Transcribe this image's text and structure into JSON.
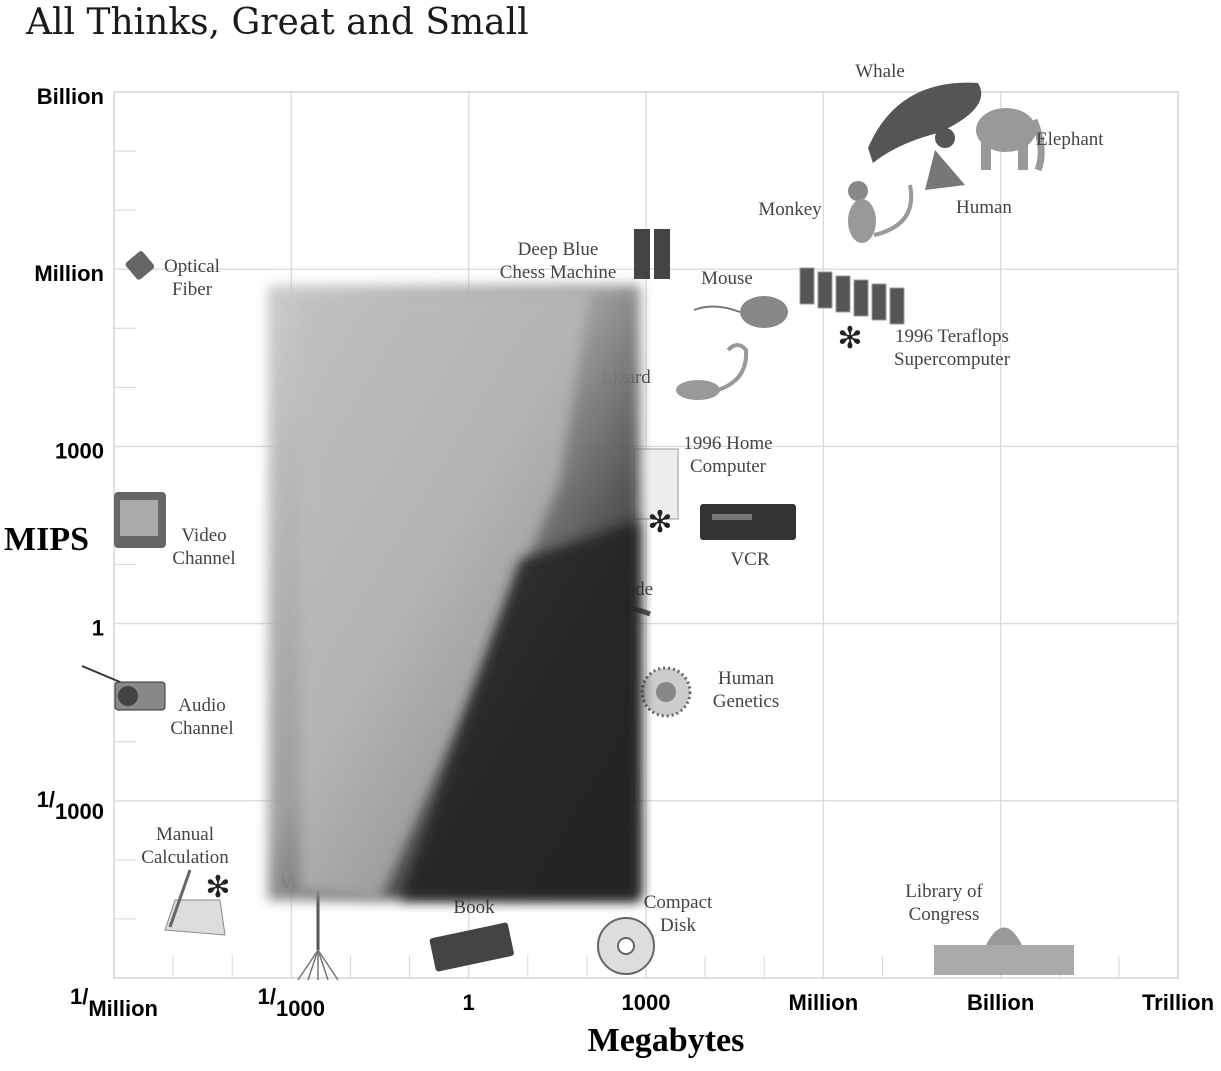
{
  "chart_data": {
    "type": "scatter",
    "title": "All Thinks, Great and Small",
    "xlabel": "Megabytes",
    "ylabel": "MIPS",
    "x_scale": "log",
    "y_scale": "log",
    "xlim": [
      1e-06,
      1000000000000.0
    ],
    "ylim": [
      1e-06,
      1000000000.0
    ],
    "grid": true,
    "x_ticks": [
      {
        "value": 1e-06,
        "pre": "1/",
        "sub": "Million"
      },
      {
        "value": 0.001,
        "pre": "1/",
        "sub": "1000"
      },
      {
        "value": 1,
        "pre": "1",
        "sub": ""
      },
      {
        "value": 1000.0,
        "pre": "1000",
        "sub": ""
      },
      {
        "value": 1000000.0,
        "pre": "Million",
        "sub": ""
      },
      {
        "value": 1000000000.0,
        "pre": "Billion",
        "sub": ""
      },
      {
        "value": 1000000000000.0,
        "pre": "Trillion",
        "sub": ""
      }
    ],
    "y_ticks": [
      {
        "value": 1000000000.0,
        "pre": "Billion",
        "sub": ""
      },
      {
        "value": 1000000.0,
        "pre": "Million",
        "sub": ""
      },
      {
        "value": 1000.0,
        "pre": "1000",
        "sub": ""
      },
      {
        "value": 1,
        "pre": "1",
        "sub": ""
      },
      {
        "value": 0.001,
        "pre": "1/",
        "sub": "1000"
      }
    ],
    "points": [
      {
        "label": [
          "Whale"
        ],
        "x": 1000000000.0,
        "y": 100000000.0,
        "icon": "whale-icon"
      },
      {
        "label": [
          "Elephant"
        ],
        "x": 10000000000.0,
        "y": 100000000.0,
        "icon": "elephant-icon"
      },
      {
        "label": [
          "Human"
        ],
        "x": 1000000000.0,
        "y": 10000000.0,
        "icon": "human-icon"
      },
      {
        "label": [
          "Monkey"
        ],
        "x": 100000000.0,
        "y": 10000000.0,
        "icon": "monkey-icon"
      },
      {
        "label": [
          "Deep Blue",
          "Chess Machine"
        ],
        "x": 1000.0,
        "y": 1000000.0,
        "icon": "deep-blue-icon"
      },
      {
        "label": [
          "Mouse"
        ],
        "x": 100000.0,
        "y": 100000.0,
        "icon": "mouse-icon"
      },
      {
        "label": [
          "1996 Teraflops",
          "Supercomputer"
        ],
        "x": 1000000.0,
        "y": 100000.0,
        "icon": "supercomputer-icon",
        "asterisk": true
      },
      {
        "label": [
          "Optical",
          "Fiber"
        ],
        "x": 1e-06,
        "y": 1000000.0,
        "icon": "optical-fiber-icon"
      },
      {
        "label": [
          "Lizard"
        ],
        "x": 1000.0,
        "y": 10000.0,
        "icon": "lizard-icon"
      },
      {
        "label": [
          "1996 Home",
          "Computer"
        ],
        "x": 1000.0,
        "y": 100.0,
        "icon": "home-computer-icon",
        "asterisk": true
      },
      {
        "label": [
          "VCR"
        ],
        "x": 10000.0,
        "y": 10.0,
        "icon": "vcr-icon"
      },
      {
        "label": [
          "Video",
          "Channel"
        ],
        "x": 1e-06,
        "y": 10.0,
        "icon": "tv-icon"
      },
      {
        "label": [
          "Nematode"
        ],
        "x": 100.0,
        "y": 1,
        "icon": "nematode-icon"
      },
      {
        "label": [
          "Human",
          "Genetics"
        ],
        "x": 1000.0,
        "y": 0.01,
        "icon": "cell-icon"
      },
      {
        "label": [
          "Audio",
          "Channel"
        ],
        "x": 1e-06,
        "y": 0.01,
        "icon": "radio-icon"
      },
      {
        "label": [
          "Manual",
          "Calculation"
        ],
        "x": 1e-05,
        "y": 1e-05,
        "icon": "hand-writing-icon",
        "asterisk": true
      },
      {
        "label": [
          "Book"
        ],
        "x": 1,
        "y": 1e-05,
        "icon": "book-icon"
      },
      {
        "label": [
          "Compact",
          "Disk"
        ],
        "x": 1000.0,
        "y": 1e-05,
        "icon": "cd-icon"
      },
      {
        "label": [
          "Library of",
          "Congress"
        ],
        "x": 1000000000.0,
        "y": 1e-05,
        "icon": "library-icon"
      },
      {
        "label": [
          "Vi"
        ],
        "x": 0.001,
        "y": 1e-05,
        "icon": "neuron-icon"
      }
    ],
    "obscured_region": true
  }
}
